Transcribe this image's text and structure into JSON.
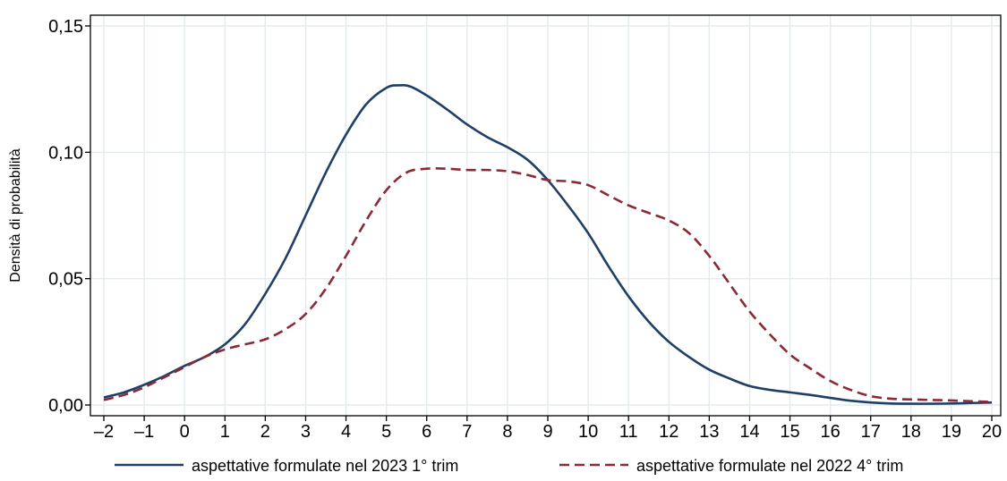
{
  "chart_data": {
    "type": "line",
    "title": "",
    "xlabel": "",
    "ylabel": "Densità di probabilità",
    "xlim": [
      -2,
      20
    ],
    "ylim": [
      0,
      0.155
    ],
    "x_ticks": [
      -2,
      -1,
      0,
      1,
      2,
      3,
      4,
      5,
      6,
      7,
      8,
      9,
      10,
      11,
      12,
      13,
      14,
      15,
      16,
      17,
      18,
      19,
      20
    ],
    "x_tick_labels": [
      "–2",
      "–1",
      "0",
      "1",
      "2",
      "3",
      "4",
      "5",
      "6",
      "7",
      "8",
      "9",
      "10",
      "11",
      "12",
      "13",
      "14",
      "15",
      "16",
      "17",
      "18",
      "19",
      "20"
    ],
    "y_ticks": [
      0,
      0.05,
      0.1,
      0.15
    ],
    "y_tick_labels": [
      "0,00",
      "0,05",
      "0,10",
      "0,15"
    ],
    "grid": true,
    "legend_position": "bottom",
    "series": [
      {
        "name": "aspettative formulate nel 2023 1° trim",
        "color": "#1f3f66",
        "dash": "solid",
        "points": [
          [
            -2,
            0.003
          ],
          [
            -1.5,
            0.005
          ],
          [
            -1,
            0.008
          ],
          [
            -0.5,
            0.0115
          ],
          [
            0,
            0.0155
          ],
          [
            0.5,
            0.019
          ],
          [
            1,
            0.024
          ],
          [
            1.5,
            0.032
          ],
          [
            2,
            0.044
          ],
          [
            2.5,
            0.058
          ],
          [
            3,
            0.075
          ],
          [
            3.5,
            0.092
          ],
          [
            4,
            0.107
          ],
          [
            4.5,
            0.119
          ],
          [
            5,
            0.1255
          ],
          [
            5.3,
            0.1265
          ],
          [
            5.6,
            0.126
          ],
          [
            6,
            0.1225
          ],
          [
            6.5,
            0.117
          ],
          [
            7,
            0.111
          ],
          [
            7.5,
            0.106
          ],
          [
            8,
            0.102
          ],
          [
            8.5,
            0.097
          ],
          [
            9,
            0.089
          ],
          [
            9.5,
            0.079
          ],
          [
            10,
            0.068
          ],
          [
            10.5,
            0.055
          ],
          [
            11,
            0.043
          ],
          [
            11.5,
            0.033
          ],
          [
            12,
            0.025
          ],
          [
            12.5,
            0.019
          ],
          [
            13,
            0.014
          ],
          [
            13.5,
            0.0105
          ],
          [
            14,
            0.0075
          ],
          [
            14.5,
            0.006
          ],
          [
            15,
            0.005
          ],
          [
            15.5,
            0.004
          ],
          [
            16,
            0.0028
          ],
          [
            16.5,
            0.0017
          ],
          [
            17,
            0.001
          ],
          [
            17.5,
            0.0006
          ],
          [
            18,
            0.0005
          ],
          [
            18.5,
            0.0005
          ],
          [
            19,
            0.0006
          ],
          [
            19.5,
            0.0008
          ],
          [
            20,
            0.001
          ]
        ]
      },
      {
        "name": "aspettative formulate nel 2022 4° trim",
        "color": "#8b2a35",
        "dash": "dashed",
        "points": [
          [
            -2,
            0.002
          ],
          [
            -1.5,
            0.004
          ],
          [
            -1,
            0.007
          ],
          [
            -0.5,
            0.011
          ],
          [
            0,
            0.015
          ],
          [
            0.5,
            0.019
          ],
          [
            1,
            0.022
          ],
          [
            1.5,
            0.024
          ],
          [
            2,
            0.026
          ],
          [
            2.5,
            0.03
          ],
          [
            3,
            0.036
          ],
          [
            3.5,
            0.046
          ],
          [
            4,
            0.059
          ],
          [
            4.5,
            0.073
          ],
          [
            5,
            0.085
          ],
          [
            5.5,
            0.092
          ],
          [
            6,
            0.0935
          ],
          [
            6.5,
            0.0935
          ],
          [
            7,
            0.093
          ],
          [
            7.5,
            0.093
          ],
          [
            8,
            0.0925
          ],
          [
            8.5,
            0.091
          ],
          [
            9,
            0.089
          ],
          [
            9.5,
            0.0885
          ],
          [
            10,
            0.087
          ],
          [
            10.5,
            0.083
          ],
          [
            11,
            0.079
          ],
          [
            11.5,
            0.076
          ],
          [
            12,
            0.073
          ],
          [
            12.5,
            0.068
          ],
          [
            13,
            0.059
          ],
          [
            13.5,
            0.048
          ],
          [
            14,
            0.037
          ],
          [
            14.5,
            0.028
          ],
          [
            15,
            0.02
          ],
          [
            15.5,
            0.0145
          ],
          [
            16,
            0.0095
          ],
          [
            16.5,
            0.006
          ],
          [
            17,
            0.0035
          ],
          [
            17.5,
            0.0025
          ],
          [
            18,
            0.0022
          ],
          [
            18.5,
            0.002
          ],
          [
            19,
            0.0018
          ],
          [
            19.5,
            0.0015
          ],
          [
            20,
            0.0012
          ]
        ]
      }
    ]
  }
}
